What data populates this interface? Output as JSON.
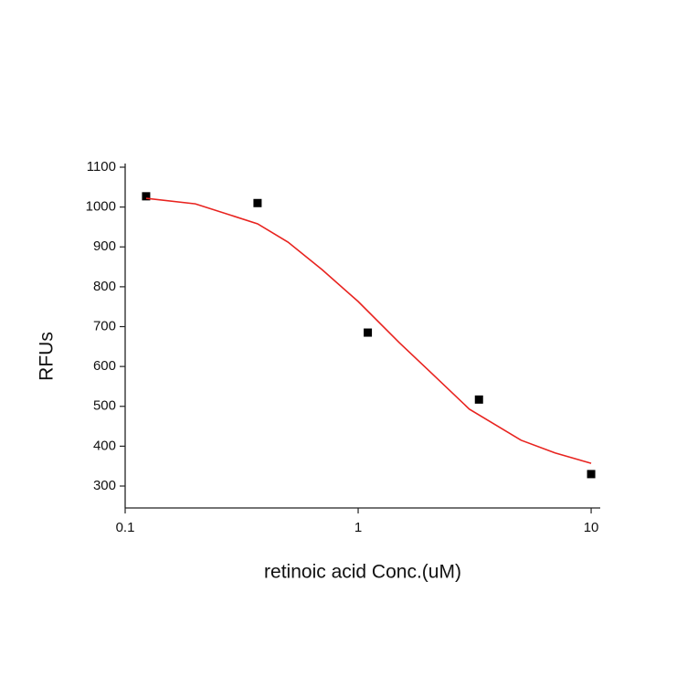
{
  "chart_data": {
    "type": "scatter",
    "xlabel": "retinoic acid Conc.(uM)",
    "ylabel": "RFUs",
    "xscale": "log",
    "xlim": [
      0.1,
      10.94
    ],
    "ylim": [
      245,
      1100
    ],
    "xticks": [
      0.1,
      1,
      10
    ],
    "yticks": [
      300,
      400,
      500,
      600,
      700,
      800,
      900,
      1000,
      1100
    ],
    "series": [
      {
        "type": "scatter",
        "color": "#000000",
        "x": [
          0.123,
          0.37,
          1.1,
          3.3,
          10
        ],
        "values": [
          1027,
          1010,
          685,
          517,
          330
        ]
      },
      {
        "type": "line",
        "color": "#e8231f",
        "x": [
          0.123,
          0.2,
          0.37,
          0.5,
          0.7,
          1,
          1.5,
          2,
          3,
          5,
          7,
          10
        ],
        "values": [
          1022,
          1008,
          958,
          912,
          843,
          763,
          660,
          591,
          493,
          415,
          383,
          357
        ]
      }
    ]
  }
}
